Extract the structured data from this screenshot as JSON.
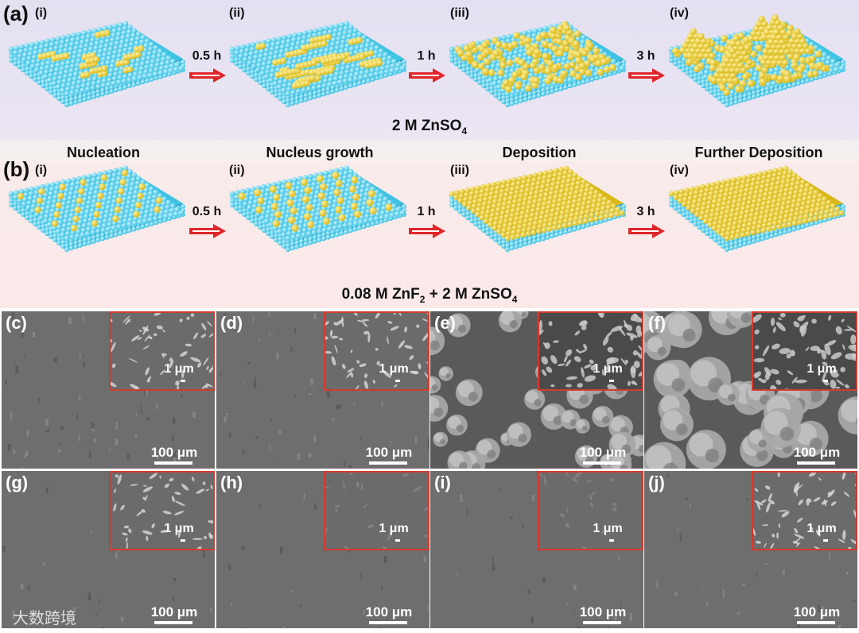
{
  "section_a": {
    "tag": "(a)",
    "subs": [
      "(i)",
      "(ii)",
      "(iii)",
      "(iv)"
    ],
    "electrolyte_main": "2 M ZnSO",
    "electrolyte_sub": "4"
  },
  "stages": [
    "Nucleation",
    "Nucleus growth",
    "Deposition",
    "Further Deposition"
  ],
  "section_b": {
    "tag": "(b)",
    "subs": [
      "(i)",
      "(ii)",
      "(iii)",
      "(iv)"
    ],
    "electrolyte_p1": "0.08 M ZnF",
    "electrolyte_p1_sub": "2",
    "electrolyte_p2": " + 2 M ZnSO",
    "electrolyte_p2_sub": "4"
  },
  "times": [
    "0.5 h",
    "1 h",
    "3 h"
  ],
  "sem_panels": [
    {
      "letter": "(c)",
      "scale": "100 μm",
      "inset_scale": "1 μm"
    },
    {
      "letter": "(d)",
      "scale": "100 μm",
      "inset_scale": "1 μm"
    },
    {
      "letter": "(e)",
      "scale": "100 μm",
      "inset_scale": "1 μm"
    },
    {
      "letter": "(f)",
      "scale": "100 μm",
      "inset_scale": "1 μm"
    },
    {
      "letter": "(g)",
      "scale": "100 μm",
      "inset_scale": "1 μm"
    },
    {
      "letter": "(h)",
      "scale": "100 μm",
      "inset_scale": "1 μm"
    },
    {
      "letter": "(i)",
      "scale": "100 μm",
      "inset_scale": "1 μm"
    },
    {
      "letter": "(j)",
      "scale": "100 μm",
      "inset_scale": "1 μm"
    }
  ],
  "watermark": "大数跨境",
  "colors": {
    "substrate": "#3fc3e3",
    "zinc": "#d9b81a",
    "arrow": "#e0262a",
    "inset_border": "#d23a2e"
  }
}
